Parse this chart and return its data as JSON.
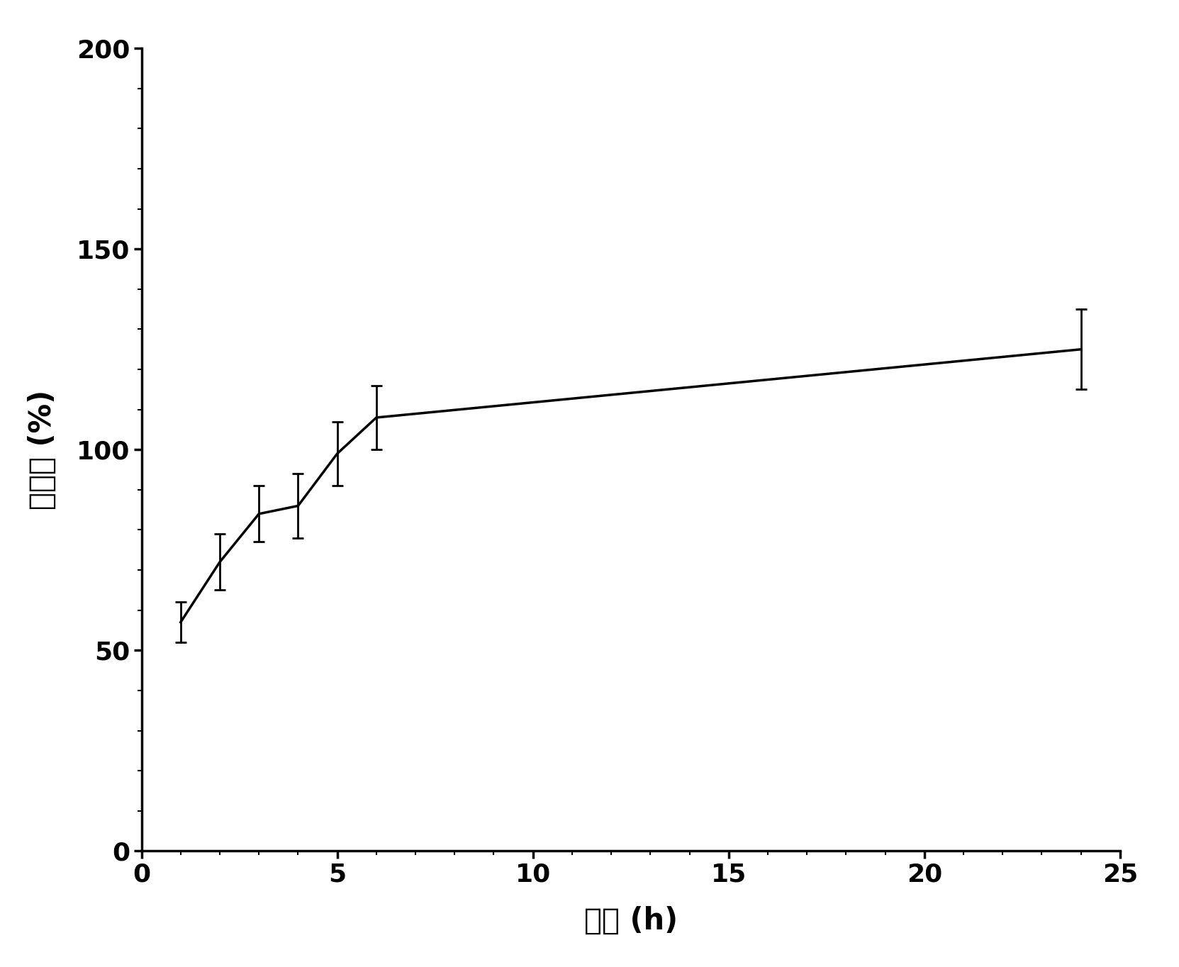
{
  "x": [
    1,
    2,
    3,
    4,
    5,
    6,
    24
  ],
  "y": [
    57,
    72,
    84,
    86,
    99,
    108,
    125
  ],
  "yerr": [
    5,
    7,
    7,
    8,
    8,
    8,
    10
  ],
  "xlabel": "时间 (h)",
  "ylabel": "溶胀率 (%)",
  "xlim": [
    0,
    25
  ],
  "ylim": [
    0,
    200
  ],
  "xticks": [
    0,
    5,
    10,
    15,
    20,
    25
  ],
  "yticks": [
    0,
    50,
    100,
    150,
    200
  ],
  "line_color": "#000000",
  "line_width": 2.5,
  "capsize": 6,
  "errorbar_linewidth": 2.0,
  "background_color": "#ffffff",
  "xlabel_fontsize": 30,
  "ylabel_fontsize": 30,
  "tick_fontsize": 26,
  "spine_linewidth": 2.5
}
